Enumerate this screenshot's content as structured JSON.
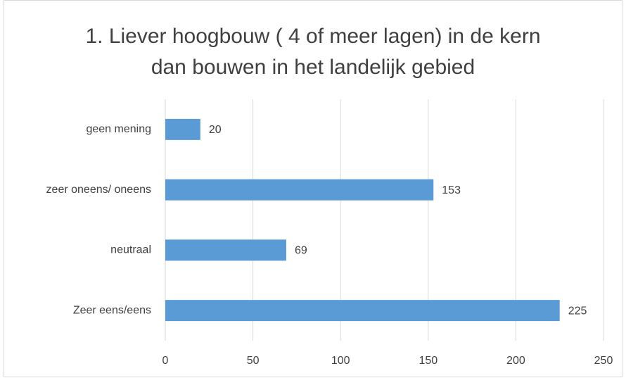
{
  "chart_data": {
    "type": "bar",
    "orientation": "horizontal",
    "title": "1. Liever hoogbouw ( 4 of meer lagen) in de kern dan bouwen in het landelijk gebied",
    "categories": [
      "geen mening",
      "zeer oneens/ oneens",
      "neutraal",
      "Zeer eens/eens"
    ],
    "values": [
      20,
      153,
      69,
      225
    ],
    "color": "#5b9bd5",
    "xlim": [
      0,
      250
    ],
    "xticks": [
      0,
      50,
      100,
      150,
      200,
      250
    ],
    "grid": true
  }
}
